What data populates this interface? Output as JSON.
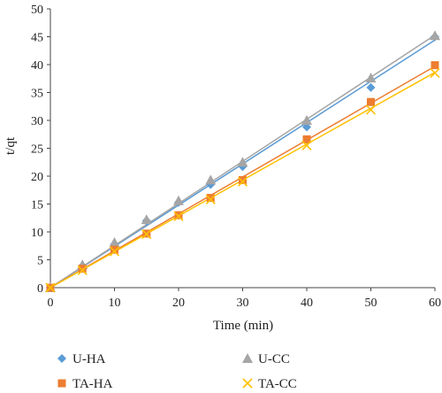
{
  "chart_data": {
    "type": "scatter",
    "title": "",
    "xlabel": "Time (min)",
    "ylabel": "t/qt",
    "xlim": [
      0,
      60
    ],
    "ylim": [
      0,
      50
    ],
    "xticks": [
      "0",
      "10",
      "20",
      "30",
      "40",
      "50",
      "60"
    ],
    "yticks": [
      "0",
      "5",
      "10",
      "15",
      "20",
      "25",
      "30",
      "35",
      "40",
      "45",
      "50"
    ],
    "grid": false,
    "legend_position": "bottom",
    "series": [
      {
        "name": "U-HA",
        "marker": "diamond",
        "color": "#5B9BD5",
        "x": [
          0,
          5,
          10,
          15,
          20,
          25,
          30,
          40,
          50,
          60
        ],
        "y": [
          0,
          3.9,
          7.8,
          12.0,
          15.3,
          18.5,
          21.7,
          28.8,
          35.9,
          45.0
        ],
        "trend": [
          0,
          44.4
        ]
      },
      {
        "name": "U-CC",
        "marker": "triangle",
        "color": "#A5A5A5",
        "x": [
          0,
          5,
          10,
          15,
          20,
          25,
          30,
          40,
          50,
          60
        ],
        "y": [
          0,
          4.1,
          8.1,
          12.2,
          15.6,
          19.3,
          22.5,
          30.0,
          37.6,
          45.2
        ],
        "trend": [
          0,
          45.3
        ]
      },
      {
        "name": "TA-HA",
        "marker": "square",
        "color": "#ED7D31",
        "x": [
          0,
          5,
          10,
          15,
          20,
          25,
          30,
          40,
          50,
          60
        ],
        "y": [
          0,
          3.4,
          6.8,
          9.7,
          13.0,
          16.1,
          19.3,
          26.6,
          33.3,
          39.9
        ],
        "trend": [
          0,
          39.7
        ]
      },
      {
        "name": "TA-CC",
        "marker": "x",
        "color": "#FFC000",
        "x": [
          0,
          5,
          10,
          15,
          20,
          25,
          30,
          40,
          50,
          60
        ],
        "y": [
          0,
          3.1,
          6.5,
          9.6,
          12.8,
          15.8,
          19.0,
          25.5,
          31.9,
          38.5
        ],
        "trend": [
          0,
          38.6
        ]
      }
    ]
  }
}
